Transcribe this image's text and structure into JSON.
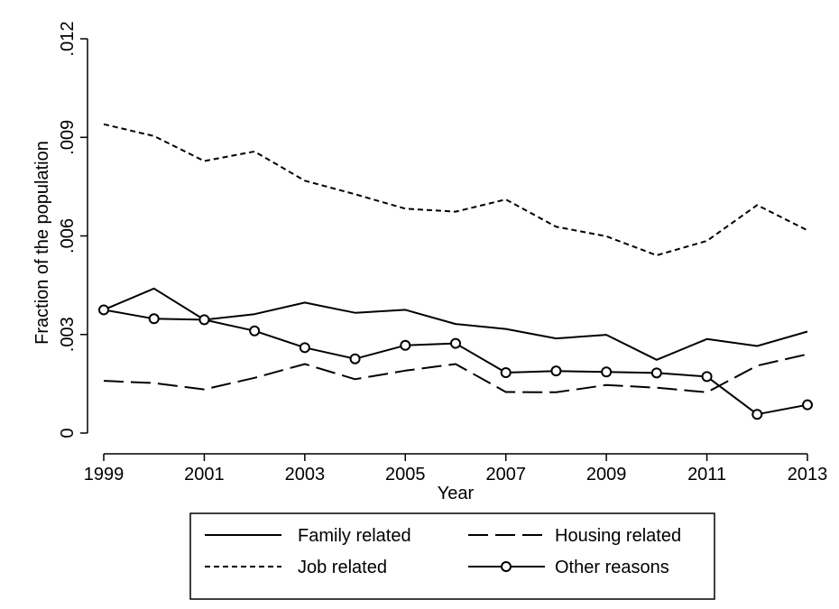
{
  "chart_data": {
    "type": "line",
    "title": "",
    "xlabel": "Year",
    "ylabel": "Fraction of the population",
    "xlim": [
      1999,
      2013
    ],
    "ylim": [
      0,
      0.012
    ],
    "x_ticks": [
      1999,
      2001,
      2003,
      2005,
      2007,
      2009,
      2011,
      2013
    ],
    "x_tick_labels": [
      "1999",
      "2001",
      "2003",
      "2005",
      "2007",
      "2009",
      "2011",
      "2013"
    ],
    "y_ticks": [
      0,
      0.003,
      0.006,
      0.009,
      0.012
    ],
    "y_tick_labels": [
      "0",
      ".003",
      ".006",
      ".009",
      ".012"
    ],
    "grid": false,
    "legend_position": "bottom",
    "x": [
      1999,
      2000,
      2001,
      2002,
      2003,
      2004,
      2005,
      2006,
      2007,
      2008,
      2009,
      2010,
      2011,
      2012,
      2013
    ],
    "series": [
      {
        "name": "Family related",
        "style": "solid",
        "marker": "none",
        "values": [
          0.00375,
          0.0044,
          0.00345,
          0.00362,
          0.00397,
          0.00366,
          0.00375,
          0.00332,
          0.00317,
          0.00288,
          0.00299,
          0.00223,
          0.00286,
          0.00265,
          0.00309
        ]
      },
      {
        "name": "Housing related",
        "style": "longdash",
        "marker": "none",
        "values": [
          0.00159,
          0.00152,
          0.00133,
          0.00168,
          0.0021,
          0.00164,
          0.0019,
          0.0021,
          0.00125,
          0.00124,
          0.00146,
          0.00138,
          0.00124,
          0.00205,
          0.0024
        ]
      },
      {
        "name": "Job related",
        "style": "shortdash",
        "marker": "none",
        "values": [
          0.0094,
          0.00904,
          0.00828,
          0.00857,
          0.00768,
          0.00727,
          0.00683,
          0.00674,
          0.00711,
          0.00628,
          0.00599,
          0.00541,
          0.00585,
          0.00694,
          0.00617
        ]
      },
      {
        "name": "Other reasons",
        "style": "solid",
        "marker": "circle",
        "values": [
          0.00375,
          0.00348,
          0.00345,
          0.00311,
          0.0026,
          0.00226,
          0.00267,
          0.00273,
          0.00184,
          0.00189,
          0.00186,
          0.00183,
          0.00172,
          0.00057,
          0.00086
        ]
      }
    ]
  }
}
